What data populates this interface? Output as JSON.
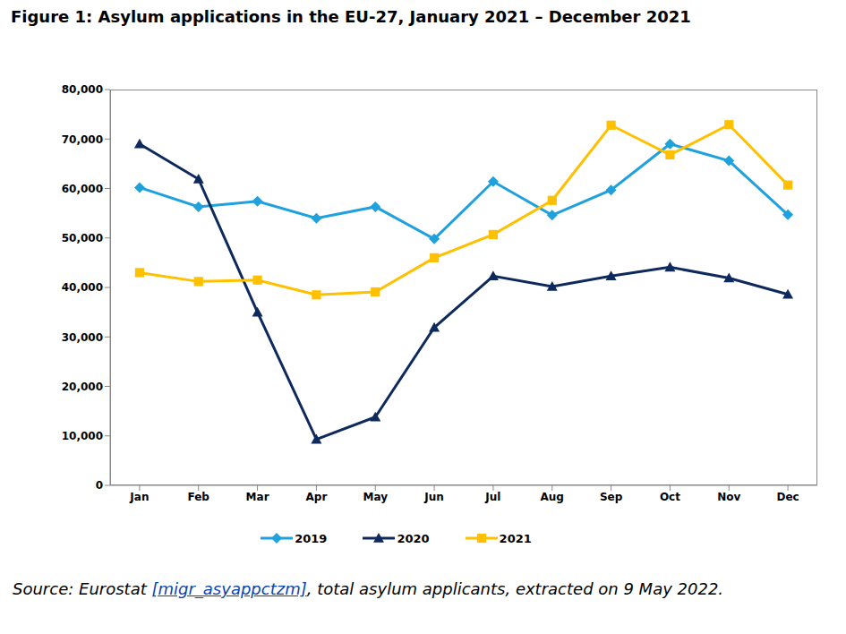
{
  "chart_data": {
    "type": "line",
    "title": "Figure 1: Asylum applications in the EU-27, January 2021 – December 2021",
    "source": "Source: Eurostat [migr_asyappctzm], total asylum applicants, extracted on 9 May 2022.",
    "categories": [
      "Jan",
      "Feb",
      "Mar",
      "Apr",
      "May",
      "Jun",
      "Jul",
      "Aug",
      "Sep",
      "Oct",
      "Nov",
      "Dec"
    ],
    "series": [
      {
        "name": "2019",
        "color": "#1ea1dc",
        "marker": "diamond",
        "values": [
          60200,
          56300,
          57400,
          54000,
          56300,
          49800,
          61400,
          54600,
          59700,
          69000,
          65600,
          54700
        ]
      },
      {
        "name": "2020",
        "color": "#0e2a5c",
        "marker": "triangle",
        "values": [
          69000,
          61900,
          35000,
          9300,
          13800,
          31900,
          42300,
          40200,
          42300,
          44100,
          41900,
          38600
        ]
      },
      {
        "name": "2021",
        "color": "#ffc000",
        "marker": "square",
        "values": [
          43000,
          41200,
          41500,
          38500,
          39100,
          46000,
          50700,
          57600,
          72800,
          66800,
          72900,
          60700
        ]
      }
    ],
    "ylim": [
      0,
      80000
    ],
    "yticks": [
      0,
      {
        "value": 10000,
        "label": "10,000"
      },
      {
        "value": 20000,
        "label": "20,000"
      },
      {
        "value": 30000,
        "label": "30,000"
      },
      {
        "value": 40000,
        "label": "40,000"
      },
      {
        "value": 50000,
        "label": "50,000"
      },
      {
        "value": 60000,
        "label": "60,000"
      },
      {
        "value": 70000,
        "label": "70,000"
      },
      {
        "value": 80000,
        "label": "80,000"
      }
    ],
    "grid": false,
    "legend": "bottom"
  }
}
